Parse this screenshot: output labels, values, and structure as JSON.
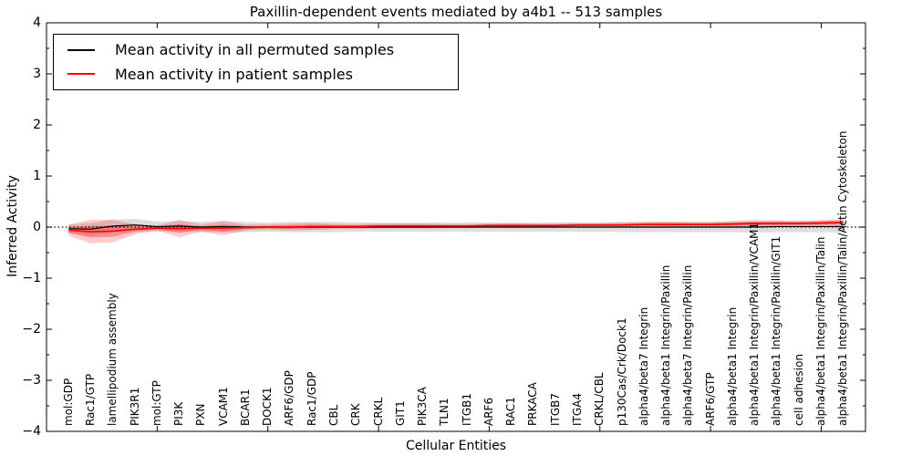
{
  "figure": {
    "title": "Paxillin-dependent events mediated by a4b1 -- 513 samples",
    "xlabel": "Cellular Entities",
    "ylabel": "Inferred Activity"
  },
  "legend": {
    "entries": [
      {
        "label": "Mean activity in all permuted samples",
        "color": "#000000"
      },
      {
        "label": "Mean activity in patient samples",
        "color": "#ff0000"
      }
    ]
  },
  "chart_data": {
    "type": "line",
    "title": "Paxillin-dependent events mediated by a4b1 -- 513 samples",
    "xlabel": "Cellular Entities",
    "ylabel": "Inferred Activity",
    "ylim": [
      -4,
      4
    ],
    "xlim": [
      0,
      37
    ],
    "grid": false,
    "zero_line_style": "dotted",
    "legend_position": "upper left",
    "y_major_ticks": [
      4,
      3,
      2,
      1,
      0,
      -1,
      -2,
      -3,
      -4
    ],
    "y_tick_labels": [
      "4",
      "3",
      "2",
      "1",
      "0",
      "−1",
      "−2",
      "−3",
      "−4"
    ],
    "y_minor_step": 0.5,
    "x_major_tick_values": [
      5,
      10,
      15,
      20,
      25,
      30,
      35
    ],
    "categories": [
      "mol:GDP",
      "Rac1/GTP",
      "lamellipodium assembly",
      "PIK3R1",
      "mol:GTP",
      "PI3K",
      "PXN",
      "VCAM1",
      "BCAR1",
      "DOCK1",
      "ARF6/GDP",
      "Rac1/GDP",
      "CBL",
      "CRK",
      "CRKL",
      "GIT1",
      "PIK3CA",
      "TLN1",
      "ITGB1",
      "ARF6",
      "RAC1",
      "PRKACA",
      "ITGB7",
      "ITGA4",
      "CRKL/CBL",
      "p130Cas/Crk/Dock1",
      "alpha4/beta7 Integrin",
      "alpha4/beta1 Integrin/Paxillin",
      "alpha4/beta7 Integrin/Paxillin",
      "ARF6/GTP",
      "alpha4/beta1 Integrin",
      "alpha4/beta1 Integrin/Paxillin/VCAM1",
      "alpha4/beta1 Integrin/Paxillin/GIT1",
      "cell adhesion",
      "alpha4/beta1 Integrin/Paxillin/Talin",
      "alpha4/beta1 Integrin/Paxillin/Talin/Actin Cytoskeleton"
    ],
    "series": [
      {
        "name": "Mean activity in all permuted samples",
        "color": "#000000",
        "line_width": 1.2,
        "band_color": "#000000",
        "band_opacity": 0.13,
        "values": [
          -0.03,
          -0.04,
          0.02,
          0.04,
          0.01,
          0.02,
          0.0,
          0.01,
          0.0,
          0.0,
          0.0,
          0.0,
          0.0,
          0.0,
          0.0,
          0.0,
          0.0,
          0.0,
          0.0,
          0.0,
          0.0,
          0.0,
          0.0,
          0.0,
          0.0,
          0.0,
          0.0,
          0.0,
          0.0,
          0.0,
          0.0,
          0.0,
          0.01,
          0.01,
          0.01,
          0.01
        ],
        "band": [
          0.08,
          0.12,
          0.13,
          0.12,
          0.1,
          0.1,
          0.1,
          0.11,
          0.1,
          0.09,
          0.1,
          0.1,
          0.1,
          0.09,
          0.09,
          0.09,
          0.09,
          0.09,
          0.09,
          0.09,
          0.09,
          0.09,
          0.09,
          0.09,
          0.09,
          0.1,
          0.1,
          0.1,
          0.1,
          0.1,
          0.1,
          0.11,
          0.11,
          0.11,
          0.11,
          0.12
        ]
      },
      {
        "name": "Mean activity in patient samples",
        "color": "#ff0000",
        "line_width": 1.6,
        "band_color": "#ff0000",
        "band_opacity": 0.2,
        "inner_band_scale": 0.5,
        "inner_band_opacity": 0.3,
        "values": [
          -0.06,
          -0.09,
          -0.08,
          -0.04,
          -0.02,
          -0.03,
          -0.02,
          -0.02,
          -0.01,
          0.0,
          0.0,
          0.01,
          0.01,
          0.01,
          0.02,
          0.02,
          0.02,
          0.02,
          0.02,
          0.03,
          0.03,
          0.03,
          0.03,
          0.04,
          0.04,
          0.04,
          0.05,
          0.05,
          0.05,
          0.05,
          0.06,
          0.07,
          0.07,
          0.07,
          0.08,
          0.09
        ],
        "band": [
          0.11,
          0.23,
          0.22,
          0.1,
          0.05,
          0.17,
          0.07,
          0.14,
          0.06,
          0.05,
          0.07,
          0.07,
          0.05,
          0.05,
          0.05,
          0.05,
          0.05,
          0.04,
          0.04,
          0.04,
          0.05,
          0.04,
          0.04,
          0.04,
          0.04,
          0.05,
          0.05,
          0.06,
          0.05,
          0.05,
          0.06,
          0.07,
          0.06,
          0.05,
          0.06,
          0.07
        ]
      }
    ]
  }
}
